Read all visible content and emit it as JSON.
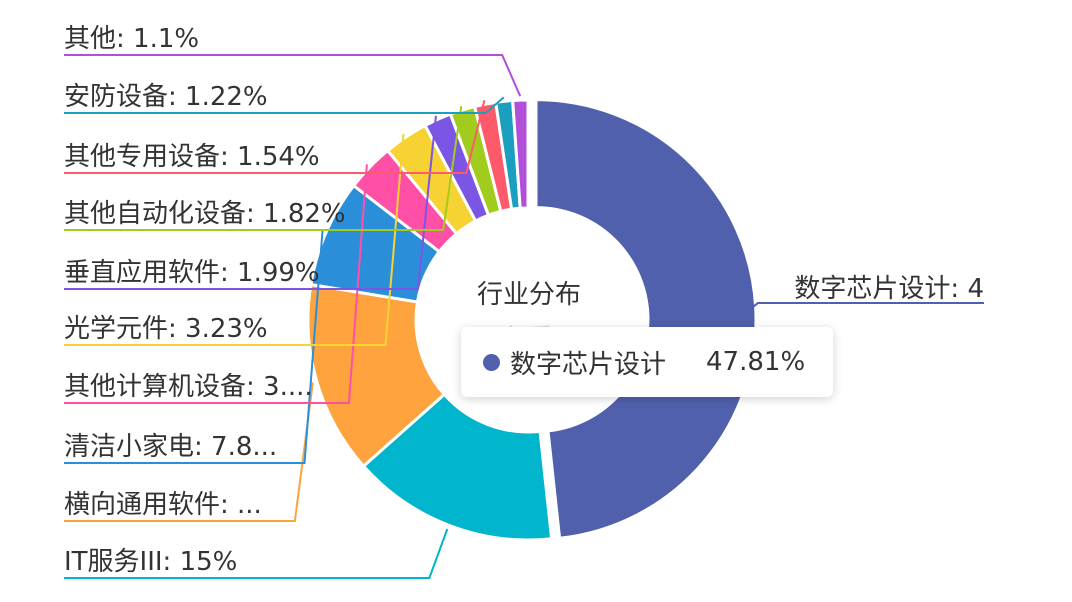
{
  "chart_data": {
    "type": "pie",
    "variant": "donut",
    "title": "行业分布",
    "subtitle": "权重",
    "slices": [
      {
        "label": "数字芯片设计",
        "value": 47.81,
        "color": "#5160ac",
        "display": "数字芯片设计: 4"
      },
      {
        "label": "IT服务III",
        "value": 15,
        "color": "#00b5cc",
        "display": "IT服务III: 15%"
      },
      {
        "label": "横向通用软件",
        "value": 14.0,
        "color": "#ffa33f",
        "display": "横向通用软件: ..."
      },
      {
        "label": "清洁小家电",
        "value": 7.8,
        "color": "#2a8fd8",
        "display": "清洁小家电: 7.8..."
      },
      {
        "label": "其他计算机设备",
        "value": 3.5,
        "color": "#ff4fa7",
        "display": "其他计算机设备: 3...."
      },
      {
        "label": "光学元件",
        "value": 3.23,
        "color": "#f6d233",
        "display": "光学元件: 3.23%"
      },
      {
        "label": "垂直应用软件",
        "value": 1.99,
        "color": "#7b55e3",
        "display": "垂直应用软件: 1.99%"
      },
      {
        "label": "其他自动化设备",
        "value": 1.82,
        "color": "#a1cc1e",
        "display": "其他自动化设备: 1.82%"
      },
      {
        "label": "其他专用设备",
        "value": 1.54,
        "color": "#ff5a6a",
        "display": "其他专用设备: 1.54%"
      },
      {
        "label": "安防设备",
        "value": 1.22,
        "color": "#1a9fbe",
        "display": "安防设备: 1.22%"
      },
      {
        "label": "其他",
        "value": 1.1,
        "color": "#b14fd9",
        "display": "其他: 1.1%"
      }
    ],
    "tooltip": {
      "label": "数字芯片设计",
      "value": "47.81%"
    }
  }
}
